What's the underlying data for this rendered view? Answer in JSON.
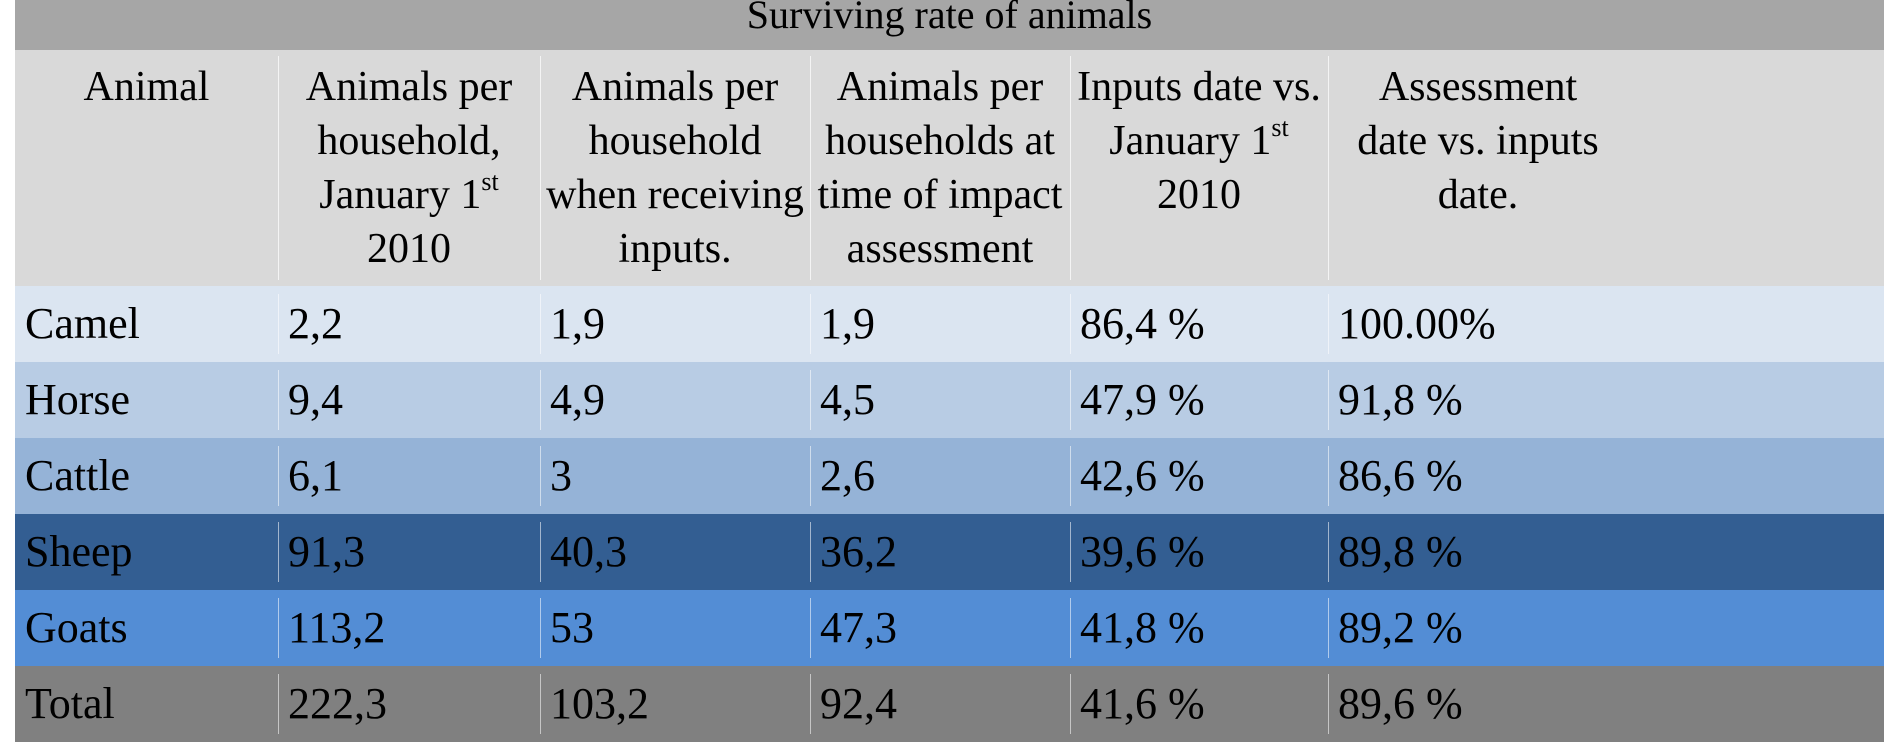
{
  "table": {
    "title": "Surviving rate of animals",
    "headers": [
      {
        "lines": [
          "Animal"
        ]
      },
      {
        "lines": [
          "Animals per",
          "household,",
          "January 1|st",
          "2010"
        ]
      },
      {
        "lines": [
          "Animals per",
          "household",
          "when receiving",
          "inputs."
        ]
      },
      {
        "lines": [
          "Animals per",
          "households at",
          "time of impact",
          "assessment"
        ]
      },
      {
        "lines": [
          "Inputs date vs.",
          "January 1|st",
          "2010"
        ]
      },
      {
        "lines": [
          "Assessment",
          "date vs. inputs",
          "date."
        ]
      }
    ],
    "rows": [
      {
        "cells": [
          "Camel",
          "2,2",
          "1,9",
          "1,9",
          "86,4 %",
          "100.00%"
        ],
        "bg": "#dbe5f1"
      },
      {
        "cells": [
          "Horse",
          "9,4",
          "4,9",
          "4,5",
          "47,9 %",
          "91,8 %"
        ],
        "bg": "#b8cce4"
      },
      {
        "cells": [
          "Cattle",
          "6,1",
          "3",
          "2,6",
          "42,6 %",
          "86,6 %"
        ],
        "bg": "#95b3d7"
      },
      {
        "cells": [
          "Sheep",
          "91,3",
          "40,3",
          "36,2",
          "39,6 %",
          "89,8 %"
        ],
        "bg": "#335e92"
      },
      {
        "cells": [
          "Goats",
          "113,2",
          "53",
          "47,3",
          "41,8 %",
          "89,2 %"
        ],
        "bg": "#538dd5"
      },
      {
        "cells": [
          "Total",
          "222,3",
          "103,2",
          "92,4",
          "41,6 %",
          "89,6 %"
        ],
        "bg": "#808080"
      }
    ]
  }
}
